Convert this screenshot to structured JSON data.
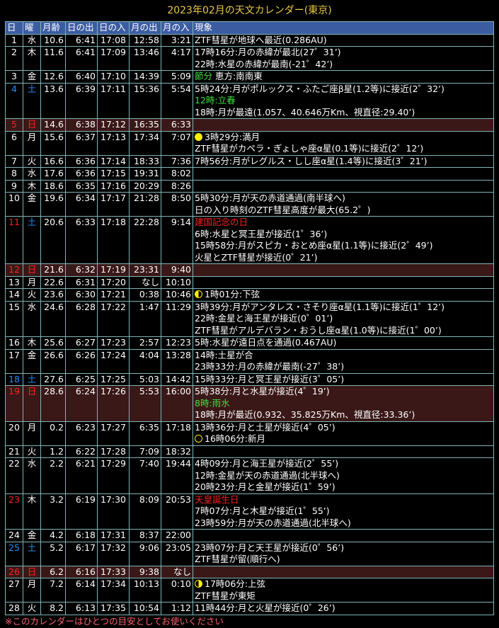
{
  "title": "2023年02月の天文カレンダー(東京)",
  "headers": [
    "日",
    "曜",
    "月齢",
    "日の出",
    "日の入",
    "月の出",
    "月の入",
    "現象"
  ],
  "colors": {
    "header_bg": "#3c5ca2",
    "sunday_row_bg": "#3a1818",
    "border": "#7fb5b5",
    "title": "#e8c848",
    "red": "#ff2020",
    "blue": "#1e90ff",
    "green": "#40e040"
  },
  "rows": [
    {
      "d": "1",
      "w": "水",
      "age": "10.6",
      "sr": "6:41",
      "ss": "17:08",
      "mr": "12:58",
      "ms": "3:21",
      "ev": [
        {
          "t": "ZTF彗星が地球へ最近(0.286AU)"
        }
      ]
    },
    {
      "d": "2",
      "w": "木",
      "age": "11.6",
      "sr": "6:41",
      "ss": "17:09",
      "mr": "13:46",
      "ms": "4:17",
      "ev": [
        {
          "t": "17時16分:月の赤緯が最北(27゜31’)"
        },
        {
          "t": "22時:水星の赤緯が最南(-21゜42’)"
        }
      ]
    },
    {
      "d": "3",
      "w": "金",
      "age": "12.6",
      "sr": "6:40",
      "ss": "17:10",
      "mr": "14:39",
      "ms": "5:09",
      "ev": [
        {
          "t": "節分",
          "c": "green",
          "t2": " 恵方:南南東"
        }
      ]
    },
    {
      "d": "4",
      "w": "土",
      "dc": "blue",
      "wc": "blue",
      "age": "13.6",
      "sr": "6:39",
      "ss": "17:11",
      "mr": "15:36",
      "ms": "5:54",
      "ev": [
        {
          "t": "5時24分:月がポルックス・ふたご座β星(1.2等)に接近(2゜32’)"
        },
        {
          "t": "12時:立春",
          "c": "green"
        },
        {
          "t": "18時:月が最遠(1.057、40.646万Km、視直径:29.40’)"
        }
      ]
    },
    {
      "d": "5",
      "w": "日",
      "dc": "red",
      "wc": "red",
      "sun": true,
      "age": "14.6",
      "sr": "6:38",
      "ss": "17:12",
      "mr": "16:35",
      "ms": "6:33",
      "ev": []
    },
    {
      "d": "6",
      "w": "月",
      "age": "15.6",
      "sr": "6:37",
      "ss": "17:13",
      "mr": "17:34",
      "ms": "7:07",
      "ev": [
        {
          "t": "3時29分:満月",
          "icon": "full"
        },
        {
          "t": "ZTF彗星がカペラ・ぎょしゃ座α星(0.1等)に接近(2゜12’)"
        }
      ]
    },
    {
      "d": "7",
      "w": "火",
      "age": "16.6",
      "sr": "6:36",
      "ss": "17:14",
      "mr": "18:33",
      "ms": "7:36",
      "ev": [
        {
          "t": "7時56分:月がレグルス・しし座α星(1.4等)に接近(3゜21’)"
        }
      ]
    },
    {
      "d": "8",
      "w": "水",
      "age": "17.6",
      "sr": "6:36",
      "ss": "17:15",
      "mr": "19:31",
      "ms": "8:02",
      "ev": []
    },
    {
      "d": "9",
      "w": "木",
      "age": "18.6",
      "sr": "6:35",
      "ss": "17:16",
      "mr": "20:29",
      "ms": "8:26",
      "ev": []
    },
    {
      "d": "10",
      "w": "金",
      "age": "19.6",
      "sr": "6:34",
      "ss": "17:17",
      "mr": "21:28",
      "ms": "8:50",
      "ev": [
        {
          "t": "5時30分:月が天の赤道通過(南半球へ)"
        },
        {
          "t": "日の入り時刻のZTF彗星高度が最大(65.2゜)"
        }
      ]
    },
    {
      "d": "11",
      "w": "土",
      "dc": "red",
      "wc": "blue",
      "age": "20.6",
      "sr": "6:33",
      "ss": "17:18",
      "mr": "22:28",
      "ms": "9:14",
      "ev": [
        {
          "t": "建国記念の日",
          "c": "red"
        },
        {
          "t": "6時:水星と冥王星が接近(1゜36’)"
        },
        {
          "t": "15時58分:月がスピカ・おとめ座α星(1.1等)に接近(2゜49’)"
        },
        {
          "t": "火星とZTF彗星が接近(0゜21’)"
        }
      ]
    },
    {
      "d": "12",
      "w": "日",
      "dc": "red",
      "wc": "red",
      "sun": true,
      "age": "21.6",
      "sr": "6:32",
      "ss": "17:19",
      "mr": "23:31",
      "ms": "9:40",
      "ev": []
    },
    {
      "d": "13",
      "w": "月",
      "age": "22.6",
      "sr": "6:31",
      "ss": "17:20",
      "mr": "なし",
      "ms": "10:10",
      "ev": []
    },
    {
      "d": "14",
      "w": "火",
      "age": "23.6",
      "sr": "6:30",
      "ss": "17:21",
      "mr": "0:38",
      "ms": "10:46",
      "ev": [
        {
          "t": "1時01分:下弦",
          "icon": "last"
        }
      ]
    },
    {
      "d": "15",
      "w": "水",
      "age": "24.6",
      "sr": "6:28",
      "ss": "17:22",
      "mr": "1:47",
      "ms": "11:29",
      "ev": [
        {
          "t": "3時39分:月がアンタレス・さそり座α星(1.1等)に接近(1゜12’)"
        },
        {
          "t": "22時:金星と海王星が接近(0゜01’)"
        },
        {
          "t": "ZTF彗星がアルデバラン・おうし座α星(1.0等)に接近(1゜00’)"
        }
      ]
    },
    {
      "d": "16",
      "w": "木",
      "age": "25.6",
      "sr": "6:27",
      "ss": "17:23",
      "mr": "2:57",
      "ms": "12:23",
      "ev": [
        {
          "t": "5時:水星が遠日点を通過(0.467AU)"
        }
      ]
    },
    {
      "d": "17",
      "w": "金",
      "age": "26.6",
      "sr": "6:26",
      "ss": "17:24",
      "mr": "4:04",
      "ms": "13:28",
      "ev": [
        {
          "t": "14時:土星が合"
        },
        {
          "t": "23時33分:月の赤緯が最南(-27゜38’)"
        }
      ]
    },
    {
      "d": "18",
      "w": "土",
      "dc": "blue",
      "wc": "blue",
      "age": "27.6",
      "sr": "6:25",
      "ss": "17:25",
      "mr": "5:03",
      "ms": "14:42",
      "ev": [
        {
          "t": "15時33分:月と冥王星が接近(3゜05’)"
        }
      ]
    },
    {
      "d": "19",
      "w": "日",
      "dc": "red",
      "wc": "red",
      "sun": true,
      "age": "28.6",
      "sr": "6:24",
      "ss": "17:26",
      "mr": "5:53",
      "ms": "16:00",
      "ev": [
        {
          "t": "5時38分:月と水星が接近(4゜19’)"
        },
        {
          "t": "8時:雨水",
          "c": "green"
        },
        {
          "t": "18時:月が最近(0.932、35.825万Km、視直径:33.36’)"
        }
      ]
    },
    {
      "d": "20",
      "w": "月",
      "age": "0.2",
      "sr": "6:23",
      "ss": "17:27",
      "mr": "6:35",
      "ms": "17:18",
      "ev": [
        {
          "t": "13時36分:月と土星が接近(4゜05’)"
        },
        {
          "t": "16時06分:新月",
          "icon": "new"
        }
      ]
    },
    {
      "d": "21",
      "w": "火",
      "age": "1.2",
      "sr": "6:22",
      "ss": "17:28",
      "mr": "7:09",
      "ms": "18:32",
      "ev": []
    },
    {
      "d": "22",
      "w": "水",
      "age": "2.2",
      "sr": "6:21",
      "ss": "17:29",
      "mr": "7:40",
      "ms": "19:44",
      "ev": [
        {
          "t": "4時09分:月と海王星が接近(2゜55’)"
        },
        {
          "t": "12時:金星が天の赤道通過(北半球へ)"
        },
        {
          "t": "20時23分:月と金星が接近(1゜59’)"
        }
      ]
    },
    {
      "d": "23",
      "w": "木",
      "dc": "red",
      "age": "3.2",
      "sr": "6:19",
      "ss": "17:30",
      "mr": "8:09",
      "ms": "20:53",
      "ev": [
        {
          "t": "天皇誕生日",
          "c": "red"
        },
        {
          "t": "7時07分:月と木星が接近(1゜55’)"
        },
        {
          "t": "23時59分:月が天の赤道通過(北半球へ)"
        }
      ]
    },
    {
      "d": "24",
      "w": "金",
      "age": "4.2",
      "sr": "6:18",
      "ss": "17:31",
      "mr": "8:37",
      "ms": "22:00",
      "ev": []
    },
    {
      "d": "25",
      "w": "土",
      "dc": "blue",
      "wc": "blue",
      "age": "5.2",
      "sr": "6:17",
      "ss": "17:32",
      "mr": "9:06",
      "ms": "23:05",
      "ev": [
        {
          "t": "23時07分:月と天王星が接近(0゜56’)"
        },
        {
          "t": "ZTF彗星が留(順行へ)"
        }
      ]
    },
    {
      "d": "26",
      "w": "日",
      "dc": "red",
      "wc": "red",
      "sun": true,
      "age": "6.2",
      "sr": "6:16",
      "ss": "17:33",
      "mr": "9:38",
      "ms": "なし",
      "ev": []
    },
    {
      "d": "27",
      "w": "月",
      "age": "7.2",
      "sr": "6:14",
      "ss": "17:34",
      "mr": "10:13",
      "ms": "0:10",
      "ev": [
        {
          "t": "17時06分:上弦",
          "icon": "first"
        },
        {
          "t": "ZTF彗星が東矩"
        }
      ]
    },
    {
      "d": "28",
      "w": "火",
      "age": "8.2",
      "sr": "6:13",
      "ss": "17:35",
      "mr": "10:54",
      "ms": "1:12",
      "ev": [
        {
          "t": "11時44分:月と火星が接近(0゜26’)"
        }
      ]
    }
  ],
  "note": "※このカレンダーはひとつの目安としてお使いください"
}
